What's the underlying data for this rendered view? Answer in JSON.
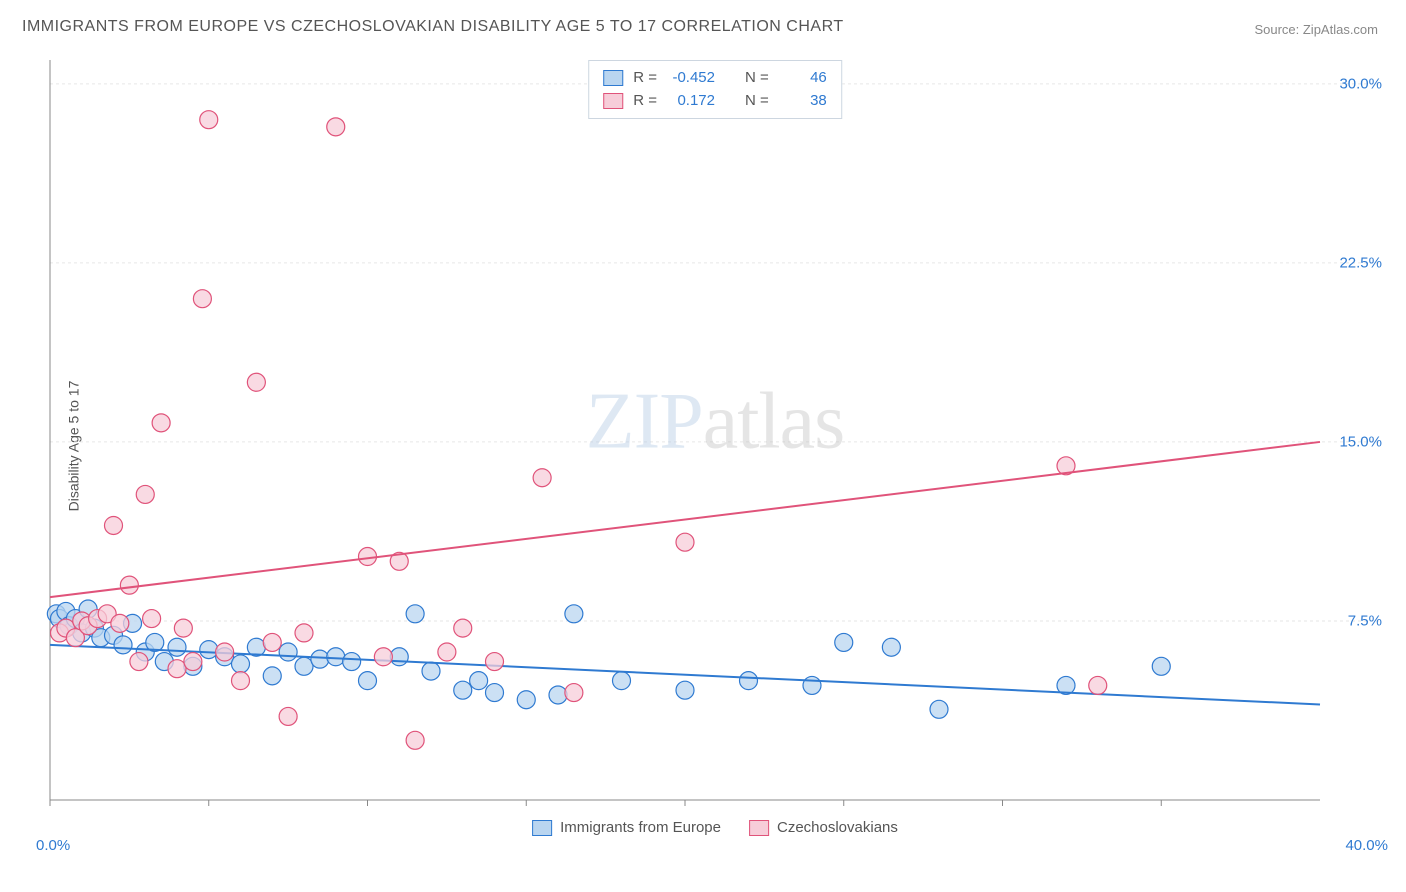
{
  "title": "IMMIGRANTS FROM EUROPE VS CZECHOSLOVAKIAN DISABILITY AGE 5 TO 17 CORRELATION CHART",
  "source_prefix": "Source: ",
  "source_name": "ZipAtlas.com",
  "ylabel": "Disability Age 5 to 17",
  "watermark_zip": "ZIP",
  "watermark_atlas": "atlas",
  "chart": {
    "type": "scatter",
    "background_color": "#ffffff",
    "grid_color": "#e6e6e6",
    "axis_color": "#888888",
    "tick_label_color": "#2f7ad1",
    "tick_label_fontsize": 15,
    "xlim": [
      0,
      40
    ],
    "ylim": [
      0,
      31
    ],
    "xtick_major": [
      0,
      5,
      10,
      15,
      20,
      25,
      30,
      35
    ],
    "xtick_labels_visible": {
      "start": "0.0%",
      "end": "40.0%"
    },
    "ytick_major": [
      7.5,
      15.0,
      22.5,
      30.0
    ],
    "ytick_labels": [
      "7.5%",
      "15.0%",
      "22.5%",
      "30.0%"
    ],
    "marker_radius": 9,
    "marker_stroke_width": 1.2,
    "line_width": 2,
    "series": [
      {
        "name": "Immigrants from Europe",
        "fill": "#b9d5f0",
        "stroke": "#2f7ad1",
        "line_color": "#2f7ad1",
        "R_label": "R =",
        "R_value": "-0.452",
        "N_label": "N =",
        "N_value": "46",
        "trend": {
          "x1": 0,
          "y1": 6.5,
          "x2": 40,
          "y2": 4.0
        },
        "points": [
          [
            0.2,
            7.8
          ],
          [
            0.3,
            7.6
          ],
          [
            0.5,
            7.9
          ],
          [
            0.6,
            7.3
          ],
          [
            0.8,
            7.6
          ],
          [
            1.0,
            7.0
          ],
          [
            1.2,
            8.0
          ],
          [
            1.4,
            7.2
          ],
          [
            1.6,
            6.8
          ],
          [
            2.0,
            6.9
          ],
          [
            2.3,
            6.5
          ],
          [
            2.6,
            7.4
          ],
          [
            3.0,
            6.2
          ],
          [
            3.3,
            6.6
          ],
          [
            3.6,
            5.8
          ],
          [
            4.0,
            6.4
          ],
          [
            4.5,
            5.6
          ],
          [
            5.0,
            6.3
          ],
          [
            5.5,
            6.0
          ],
          [
            6.0,
            5.7
          ],
          [
            6.5,
            6.4
          ],
          [
            7.0,
            5.2
          ],
          [
            7.5,
            6.2
          ],
          [
            8.0,
            5.6
          ],
          [
            8.5,
            5.9
          ],
          [
            9.0,
            6.0
          ],
          [
            9.5,
            5.8
          ],
          [
            10.0,
            5.0
          ],
          [
            11.0,
            6.0
          ],
          [
            11.5,
            7.8
          ],
          [
            12.0,
            5.4
          ],
          [
            13.0,
            4.6
          ],
          [
            13.5,
            5.0
          ],
          [
            14.0,
            4.5
          ],
          [
            15.0,
            4.2
          ],
          [
            16.0,
            4.4
          ],
          [
            16.5,
            7.8
          ],
          [
            18.0,
            5.0
          ],
          [
            20.0,
            4.6
          ],
          [
            22.0,
            5.0
          ],
          [
            24.0,
            4.8
          ],
          [
            25.0,
            6.6
          ],
          [
            26.5,
            6.4
          ],
          [
            28.0,
            3.8
          ],
          [
            32.0,
            4.8
          ],
          [
            35.0,
            5.6
          ]
        ]
      },
      {
        "name": "Czechoslovakians",
        "fill": "#f7cdd9",
        "stroke": "#e0537a",
        "line_color": "#e0537a",
        "R_label": "R =",
        "R_value": "0.172",
        "N_label": "N =",
        "N_value": "38",
        "trend": {
          "x1": 0,
          "y1": 8.5,
          "x2": 40,
          "y2": 15.0
        },
        "points": [
          [
            0.3,
            7.0
          ],
          [
            0.5,
            7.2
          ],
          [
            0.8,
            6.8
          ],
          [
            1.0,
            7.5
          ],
          [
            1.2,
            7.3
          ],
          [
            1.5,
            7.6
          ],
          [
            1.8,
            7.8
          ],
          [
            2.0,
            11.5
          ],
          [
            2.2,
            7.4
          ],
          [
            2.5,
            9.0
          ],
          [
            2.8,
            5.8
          ],
          [
            3.0,
            12.8
          ],
          [
            3.2,
            7.6
          ],
          [
            3.5,
            15.8
          ],
          [
            4.0,
            5.5
          ],
          [
            4.2,
            7.2
          ],
          [
            4.5,
            5.8
          ],
          [
            4.8,
            21.0
          ],
          [
            5.0,
            28.5
          ],
          [
            5.5,
            6.2
          ],
          [
            6.0,
            5.0
          ],
          [
            6.5,
            17.5
          ],
          [
            7.0,
            6.6
          ],
          [
            7.5,
            3.5
          ],
          [
            8.0,
            7.0
          ],
          [
            9.0,
            28.2
          ],
          [
            10.0,
            10.2
          ],
          [
            10.5,
            6.0
          ],
          [
            11.0,
            10.0
          ],
          [
            11.5,
            2.5
          ],
          [
            12.5,
            6.2
          ],
          [
            13.0,
            7.2
          ],
          [
            14.0,
            5.8
          ],
          [
            15.5,
            13.5
          ],
          [
            16.5,
            4.5
          ],
          [
            20.0,
            10.8
          ],
          [
            32.0,
            14.0
          ],
          [
            33.0,
            4.8
          ]
        ]
      }
    ]
  },
  "bottom_legend": [
    {
      "label": "Immigrants from Europe",
      "fill": "#b9d5f0",
      "stroke": "#2f7ad1"
    },
    {
      "label": "Czechoslovakians",
      "fill": "#f7cdd9",
      "stroke": "#e0537a"
    }
  ]
}
